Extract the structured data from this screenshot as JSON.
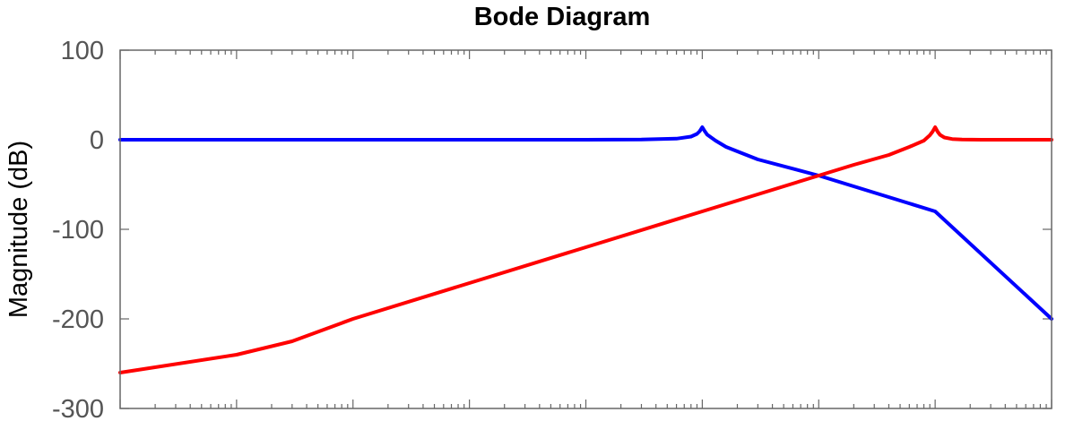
{
  "chart_data": {
    "type": "line",
    "title": "Bode Diagram",
    "xlabel": "",
    "ylabel": "Magnitude (dB)",
    "x_scale": "log",
    "xlim": [
      0.001,
      100000
    ],
    "ylim": [
      -300,
      100
    ],
    "yticks": [
      100,
      0,
      -100,
      -200,
      -300
    ],
    "ytick_labels": [
      "100",
      "0",
      "-100",
      "-200",
      "-300"
    ],
    "grid": false,
    "colors": {
      "axis": "#666666",
      "frame": "#666666"
    },
    "series": [
      {
        "color": "#0000ff",
        "x": [
          0.001,
          0.01,
          0.1,
          1,
          10,
          30,
          60,
          80,
          90,
          95,
          100,
          105,
          110,
          130,
          160,
          200,
          300,
          1000,
          10000,
          100000
        ],
        "y": [
          0,
          0,
          0,
          0,
          0,
          0.2,
          1.2,
          3.5,
          6.5,
          9.5,
          14,
          9.5,
          5.8,
          -1,
          -8,
          -13,
          -22,
          -40,
          -80,
          -200
        ]
      },
      {
        "color": "#ff0000",
        "x": [
          0.001,
          0.01,
          0.03,
          0.1,
          1,
          10,
          100,
          1000,
          2000,
          4000,
          6000,
          8000,
          9000,
          9500,
          10000,
          10500,
          11000,
          12000,
          14000,
          17000,
          25000,
          50000,
          100000
        ],
        "y": [
          -260,
          -240,
          -225,
          -200,
          -160,
          -120,
          -80,
          -40,
          -28,
          -17,
          -8,
          -1,
          5,
          9,
          14,
          9,
          5.5,
          2.5,
          0.8,
          0.3,
          0,
          0,
          0
        ]
      }
    ]
  }
}
